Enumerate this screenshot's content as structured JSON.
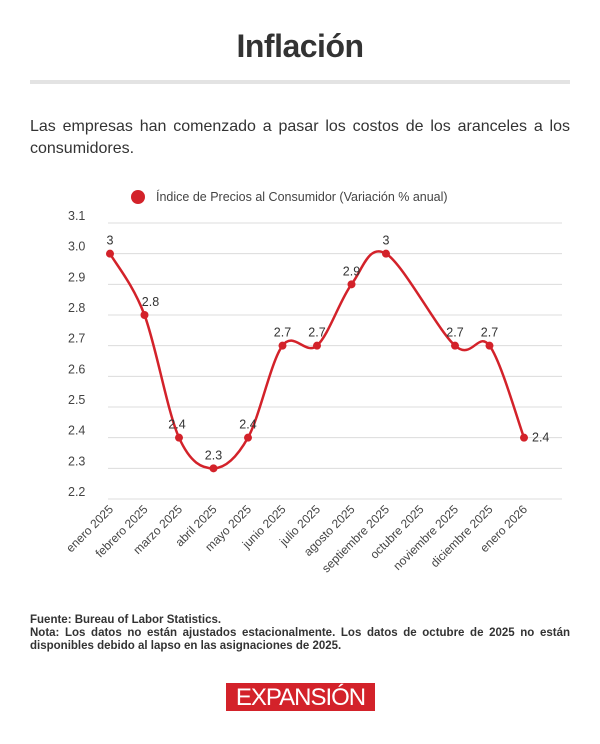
{
  "header": {
    "title": "Inflación",
    "subtitle": "Las empresas han comenzado a pasar los costos de los aranceles a los consumidores."
  },
  "chart_data": {
    "type": "line",
    "title": "",
    "legend": {
      "label": "Índice de Precios al Consumidor (Variación % anual)",
      "position": "top"
    },
    "categories": [
      "enero 2025",
      "febrero 2025",
      "marzo 2025",
      "abril 2025",
      "mayo 2025",
      "junio 2025",
      "julio 2025",
      "agosto 2025",
      "septiembre 2025",
      "octubre 2025",
      "noviembre 2025",
      "diciembre 2025",
      "enero 2026"
    ],
    "series": [
      {
        "name": "Índice de Precios al Consumidor (Variación % anual)",
        "values": [
          3,
          2.8,
          2.4,
          2.3,
          2.4,
          2.7,
          2.7,
          2.9,
          3,
          null,
          2.7,
          2.7,
          2.4
        ],
        "color": "#d3222a"
      }
    ],
    "yticks": [
      "2.2",
      "2.3",
      "2.4",
      "2.5",
      "2.6",
      "2.7",
      "2.8",
      "2.9",
      "3.0",
      "3.1"
    ],
    "ylim": [
      2.2,
      3.1
    ],
    "grid": true,
    "smooth": true
  },
  "footer": {
    "source": "Fuente: Bureau of Labor Statistics.",
    "note": "Nota: Los datos no están ajustados estacionalmente. Los datos de octubre de 2025 no están disponibles debido al lapso en las asignaciones de 2025.",
    "logo": "EXPANSIÓN"
  }
}
